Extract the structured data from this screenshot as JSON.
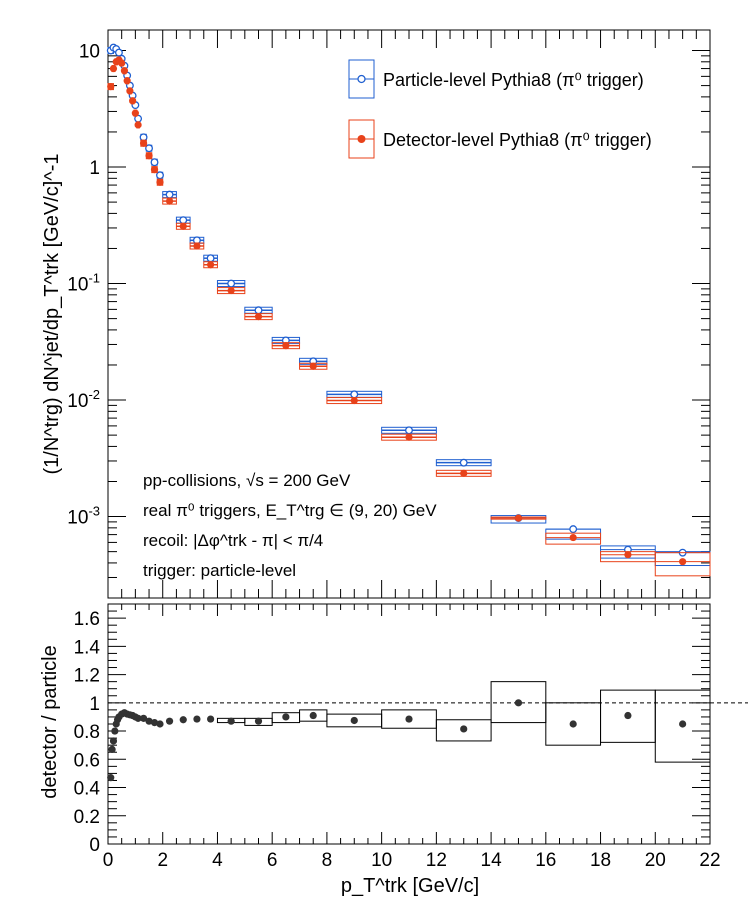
{
  "chart_data": [
    {
      "type": "scatter",
      "panel": "spectrum",
      "yscale": "log",
      "ylim": [
        0.0002,
        15
      ],
      "xlim": [
        0,
        22
      ],
      "ylabel": "(1/N^trg) dN^jet/dp_T^trk [GeV/c]^-1",
      "ytick_labels": [
        "10^-3",
        "10^-2",
        "10^-1",
        "1",
        "10"
      ],
      "legend_position": "top-right",
      "series": [
        {
          "name": "Particle-level Pythia8 (π⁰ trigger)",
          "color": "#1f5fd0",
          "marker": "open-circle",
          "points": [
            {
              "x": 0.1,
              "y": 10.0,
              "x0": 0.0,
              "x1": 0.2
            },
            {
              "x": 0.2,
              "y": 10.6,
              "x0": 0.15,
              "x1": 0.25
            },
            {
              "x": 0.3,
              "y": 10.3,
              "x0": 0.25,
              "x1": 0.35
            },
            {
              "x": 0.4,
              "y": 9.6,
              "x0": 0.35,
              "x1": 0.45
            },
            {
              "x": 0.5,
              "y": 8.5,
              "x0": 0.45,
              "x1": 0.55
            },
            {
              "x": 0.6,
              "y": 7.4,
              "x0": 0.55,
              "x1": 0.65
            },
            {
              "x": 0.7,
              "y": 6.1,
              "x0": 0.65,
              "x1": 0.75
            },
            {
              "x": 0.8,
              "y": 5.0,
              "x0": 0.75,
              "x1": 0.85
            },
            {
              "x": 0.9,
              "y": 4.1,
              "x0": 0.85,
              "x1": 0.95
            },
            {
              "x": 1.0,
              "y": 3.4,
              "x0": 0.95,
              "x1": 1.05
            },
            {
              "x": 1.1,
              "y": 2.6,
              "x0": 1.05,
              "x1": 1.15
            },
            {
              "x": 1.3,
              "y": 1.8,
              "x0": 1.2,
              "x1": 1.4
            },
            {
              "x": 1.5,
              "y": 1.45,
              "x0": 1.4,
              "x1": 1.6
            },
            {
              "x": 1.7,
              "y": 1.1,
              "x0": 1.6,
              "x1": 1.8
            },
            {
              "x": 1.9,
              "y": 0.85,
              "x0": 1.8,
              "x1": 2.0
            },
            {
              "x": 2.25,
              "y": 0.58,
              "x0": 2.0,
              "x1": 2.5
            },
            {
              "x": 2.75,
              "y": 0.35,
              "x0": 2.5,
              "x1": 3.0
            },
            {
              "x": 3.25,
              "y": 0.235,
              "x0": 3.0,
              "x1": 3.5
            },
            {
              "x": 3.75,
              "y": 0.165,
              "x0": 3.5,
              "x1": 4.0
            },
            {
              "x": 4.5,
              "y": 0.1,
              "x0": 4.0,
              "x1": 5.0
            },
            {
              "x": 5.5,
              "y": 0.059,
              "x0": 5.0,
              "x1": 6.0
            },
            {
              "x": 6.5,
              "y": 0.0325,
              "x0": 6.0,
              "x1": 7.0
            },
            {
              "x": 7.5,
              "y": 0.0215,
              "x0": 7.0,
              "x1": 8.0
            },
            {
              "x": 9.0,
              "y": 0.0112,
              "x0": 8.0,
              "x1": 10.0
            },
            {
              "x": 11.0,
              "y": 0.0055,
              "x0": 10.0,
              "x1": 12.0
            },
            {
              "x": 13.0,
              "y": 0.0029,
              "x0": 12.0,
              "x1": 14.0
            },
            {
              "x": 15.0,
              "y": 0.00097,
              "x0": 14.0,
              "x1": 16.0,
              "ylo": 0.00088,
              "yhi": 0.00102
            },
            {
              "x": 17.0,
              "y": 0.00078,
              "x0": 16.0,
              "x1": 18.0,
              "ylo": 0.00064,
              "yhi": 0.00078
            },
            {
              "x": 19.0,
              "y": 0.00052,
              "x0": 18.0,
              "x1": 20.0,
              "ylo": 0.00044,
              "yhi": 0.00056
            },
            {
              "x": 21.0,
              "y": 0.00049,
              "x0": 20.0,
              "x1": 22.0,
              "ylo": 0.00038,
              "yhi": 0.0005
            }
          ]
        },
        {
          "name": "Detector-level Pythia8 (π⁰ trigger)",
          "color": "#e8421a",
          "marker": "filled-circle",
          "points": [
            {
              "x": 0.1,
              "y": 4.9,
              "x0": 0.0,
              "x1": 0.2
            },
            {
              "x": 0.2,
              "y": 7.0,
              "x0": 0.15,
              "x1": 0.25
            },
            {
              "x": 0.3,
              "y": 8.0,
              "x0": 0.25,
              "x1": 0.35
            },
            {
              "x": 0.4,
              "y": 8.3,
              "x0": 0.35,
              "x1": 0.45
            },
            {
              "x": 0.5,
              "y": 7.8,
              "x0": 0.45,
              "x1": 0.55
            },
            {
              "x": 0.6,
              "y": 6.7,
              "x0": 0.55,
              "x1": 0.65
            },
            {
              "x": 0.7,
              "y": 5.5,
              "x0": 0.65,
              "x1": 0.75
            },
            {
              "x": 0.8,
              "y": 4.5,
              "x0": 0.75,
              "x1": 0.85
            },
            {
              "x": 0.9,
              "y": 3.7,
              "x0": 0.85,
              "x1": 0.95
            },
            {
              "x": 1.0,
              "y": 2.9,
              "x0": 0.95,
              "x1": 1.05
            },
            {
              "x": 1.1,
              "y": 2.3,
              "x0": 1.05,
              "x1": 1.15
            },
            {
              "x": 1.3,
              "y": 1.6,
              "x0": 1.2,
              "x1": 1.4
            },
            {
              "x": 1.5,
              "y": 1.25,
              "x0": 1.4,
              "x1": 1.6
            },
            {
              "x": 1.7,
              "y": 0.95,
              "x0": 1.6,
              "x1": 1.8
            },
            {
              "x": 1.9,
              "y": 0.74,
              "x0": 1.8,
              "x1": 2.0
            },
            {
              "x": 2.25,
              "y": 0.51,
              "x0": 2.0,
              "x1": 2.5
            },
            {
              "x": 2.75,
              "y": 0.31,
              "x0": 2.5,
              "x1": 3.0
            },
            {
              "x": 3.25,
              "y": 0.21,
              "x0": 3.0,
              "x1": 3.5
            },
            {
              "x": 3.75,
              "y": 0.145,
              "x0": 3.5,
              "x1": 4.0
            },
            {
              "x": 4.5,
              "y": 0.087,
              "x0": 4.0,
              "x1": 5.0
            },
            {
              "x": 5.5,
              "y": 0.052,
              "x0": 5.0,
              "x1": 6.0
            },
            {
              "x": 6.5,
              "y": 0.0293,
              "x0": 6.0,
              "x1": 7.0
            },
            {
              "x": 7.5,
              "y": 0.0195,
              "x0": 7.0,
              "x1": 8.0
            },
            {
              "x": 9.0,
              "y": 0.0099,
              "x0": 8.0,
              "x1": 10.0
            },
            {
              "x": 11.0,
              "y": 0.0048,
              "x0": 10.0,
              "x1": 12.0
            },
            {
              "x": 13.0,
              "y": 0.00235,
              "x0": 12.0,
              "x1": 14.0
            },
            {
              "x": 15.0,
              "y": 0.00097,
              "x0": 14.0,
              "x1": 16.0,
              "ylo": 0.00095,
              "yhi": 0.00099
            },
            {
              "x": 17.0,
              "y": 0.00066,
              "x0": 16.0,
              "x1": 18.0,
              "ylo": 0.00058,
              "yhi": 0.00072
            },
            {
              "x": 19.0,
              "y": 0.00047,
              "x0": 18.0,
              "x1": 20.0,
              "ylo": 0.00041,
              "yhi": 0.0005
            },
            {
              "x": 21.0,
              "y": 0.00041,
              "x0": 20.0,
              "x1": 22.0,
              "ylo": 0.00031,
              "yhi": 0.00049
            }
          ]
        }
      ],
      "annotations": [
        "pp-collisions, √s = 200 GeV",
        "real π⁰ triggers, E_T^trg ∈ (9, 20) GeV",
        "recoil: |Δφ^trk - π| < π/4",
        "trigger: particle-level"
      ]
    },
    {
      "type": "scatter",
      "panel": "ratio",
      "ylim": [
        0,
        1.7
      ],
      "xlim": [
        0,
        22
      ],
      "ylabel": "detector / particle",
      "xlabel": "p_T^trk [GeV/c]",
      "y_ticks": [
        0,
        0.2,
        0.4,
        0.6,
        0.8,
        1,
        1.2,
        1.4,
        1.6
      ],
      "x_ticks": [
        0,
        2,
        4,
        6,
        8,
        10,
        12,
        14,
        16,
        18,
        20,
        22
      ],
      "reference_line": 1.0,
      "series": [
        {
          "name": "",
          "color": "#333333",
          "marker": "filled-circle",
          "points": [
            {
              "x": 0.1,
              "y": 0.47,
              "x0": 0.0,
              "x1": 0.2
            },
            {
              "x": 0.15,
              "y": 0.67,
              "x0": 0.1,
              "x1": 0.2
            },
            {
              "x": 0.2,
              "y": 0.73,
              "x0": 0.15,
              "x1": 0.25
            },
            {
              "x": 0.25,
              "y": 0.8,
              "x0": 0.2,
              "x1": 0.3
            },
            {
              "x": 0.3,
              "y": 0.85,
              "x0": 0.25,
              "x1": 0.35
            },
            {
              "x": 0.35,
              "y": 0.88,
              "x0": 0.3,
              "x1": 0.4
            },
            {
              "x": 0.4,
              "y": 0.9,
              "x0": 0.35,
              "x1": 0.45
            },
            {
              "x": 0.5,
              "y": 0.92,
              "x0": 0.45,
              "x1": 0.55
            },
            {
              "x": 0.6,
              "y": 0.93,
              "x0": 0.55,
              "x1": 0.65
            },
            {
              "x": 0.7,
              "y": 0.92,
              "x0": 0.65,
              "x1": 0.75
            },
            {
              "x": 0.8,
              "y": 0.915,
              "x0": 0.75,
              "x1": 0.85
            },
            {
              "x": 0.9,
              "y": 0.91,
              "x0": 0.85,
              "x1": 0.95
            },
            {
              "x": 1.0,
              "y": 0.9,
              "x0": 0.95,
              "x1": 1.05
            },
            {
              "x": 1.1,
              "y": 0.89,
              "x0": 1.05,
              "x1": 1.15
            },
            {
              "x": 1.3,
              "y": 0.89,
              "x0": 1.2,
              "x1": 1.4
            },
            {
              "x": 1.5,
              "y": 0.87,
              "x0": 1.4,
              "x1": 1.6
            },
            {
              "x": 1.7,
              "y": 0.86,
              "x0": 1.6,
              "x1": 1.8
            },
            {
              "x": 1.9,
              "y": 0.85,
              "x0": 1.8,
              "x1": 2.0
            },
            {
              "x": 2.25,
              "y": 0.87,
              "x0": 2.0,
              "x1": 2.5
            },
            {
              "x": 2.75,
              "y": 0.88,
              "x0": 2.5,
              "x1": 3.0
            },
            {
              "x": 3.25,
              "y": 0.885,
              "x0": 3.0,
              "x1": 3.5
            },
            {
              "x": 3.75,
              "y": 0.885,
              "x0": 3.5,
              "x1": 4.0
            },
            {
              "x": 4.5,
              "y": 0.87,
              "x0": 4.0,
              "x1": 5.0,
              "ylo": 0.86,
              "yhi": 0.89
            },
            {
              "x": 5.5,
              "y": 0.87,
              "x0": 5.0,
              "x1": 6.0,
              "ylo": 0.84,
              "yhi": 0.89
            },
            {
              "x": 6.5,
              "y": 0.9,
              "x0": 6.0,
              "x1": 7.0,
              "ylo": 0.86,
              "yhi": 0.93
            },
            {
              "x": 7.5,
              "y": 0.91,
              "x0": 7.0,
              "x1": 8.0,
              "ylo": 0.87,
              "yhi": 0.95
            },
            {
              "x": 9.0,
              "y": 0.875,
              "x0": 8.0,
              "x1": 10.0,
              "ylo": 0.83,
              "yhi": 0.92
            },
            {
              "x": 11.0,
              "y": 0.885,
              "x0": 10.0,
              "x1": 12.0,
              "ylo": 0.82,
              "yhi": 0.95
            },
            {
              "x": 13.0,
              "y": 0.815,
              "x0": 12.0,
              "x1": 14.0,
              "ylo": 0.73,
              "yhi": 0.88
            },
            {
              "x": 15.0,
              "y": 1.0,
              "x0": 14.0,
              "x1": 16.0,
              "ylo": 0.86,
              "yhi": 1.15
            },
            {
              "x": 17.0,
              "y": 0.85,
              "x0": 16.0,
              "x1": 18.0,
              "ylo": 0.7,
              "yhi": 1.0
            },
            {
              "x": 19.0,
              "y": 0.91,
              "x0": 18.0,
              "x1": 20.0,
              "ylo": 0.72,
              "yhi": 1.09
            },
            {
              "x": 21.0,
              "y": 0.85,
              "x0": 20.0,
              "x1": 22.0,
              "ylo": 0.58,
              "yhi": 1.09
            }
          ]
        }
      ]
    }
  ]
}
